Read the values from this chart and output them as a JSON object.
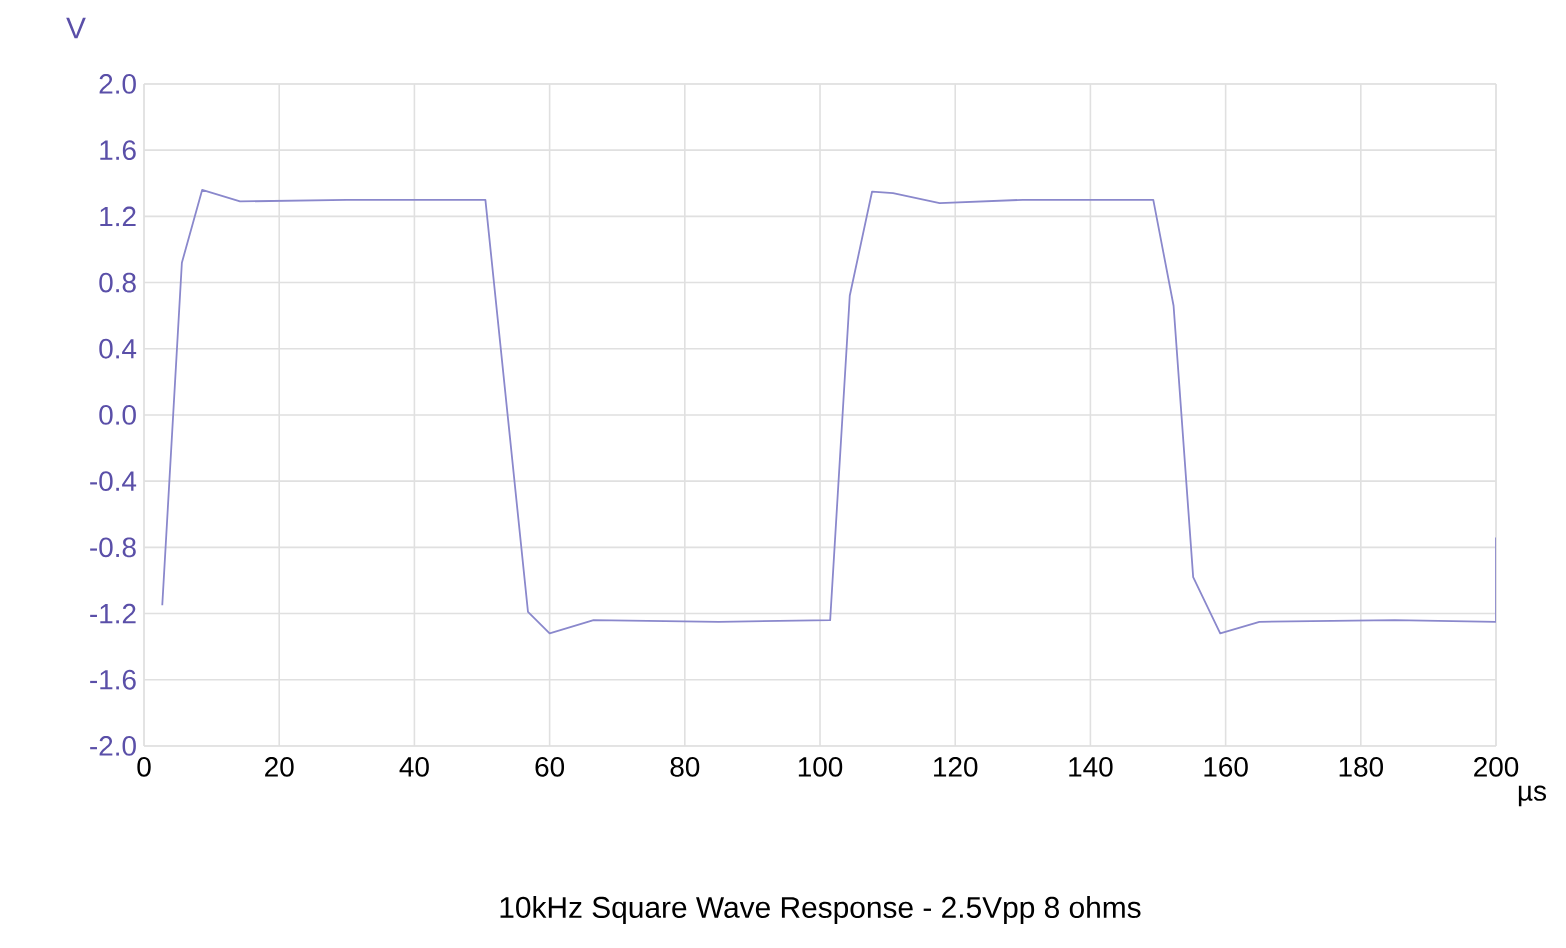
{
  "chart_data": {
    "type": "line",
    "title": "10kHz Square Wave Response - 2.5Vpp 8 ohms",
    "xlabel": "µs",
    "ylabel": "V",
    "xlim": [
      0,
      200
    ],
    "xticks": [
      0,
      20,
      40,
      60,
      80,
      100,
      120,
      140,
      160,
      180,
      200
    ],
    "ylim": [
      -2.0,
      2.0
    ],
    "yticks": [
      {
        "value": 2.0,
        "label": "2.0"
      },
      {
        "value": 1.6,
        "label": "1.6"
      },
      {
        "value": 1.2,
        "label": "1.2"
      },
      {
        "value": 0.8,
        "label": "0.8"
      },
      {
        "value": 0.4,
        "label": "0.4"
      },
      {
        "value": 0.0,
        "label": "0.0"
      },
      {
        "value": -0.4,
        "label": "-0.4"
      },
      {
        "value": -0.8,
        "label": "-0.8"
      },
      {
        "value": -1.2,
        "label": "-1.2"
      },
      {
        "value": -1.6,
        "label": "-1.6"
      },
      {
        "value": -2.0,
        "label": "-2.0"
      }
    ],
    "grid": true,
    "marker": "none",
    "line_style": "solid",
    "series": [
      {
        "color": "#8a88cc",
        "x": [
          2.7,
          5.6,
          8.6,
          14.2,
          30,
          50.5,
          56.8,
          60,
          66.5,
          85,
          101.5,
          104.4,
          107.7,
          110.8,
          117.7,
          130,
          149.3,
          152.3,
          155.2,
          159.2,
          165,
          185,
          200,
          200
        ],
        "values": [
          -1.15,
          0.92,
          1.36,
          1.29,
          1.3,
          1.3,
          -1.19,
          -1.32,
          -1.24,
          -1.25,
          -1.24,
          0.72,
          1.35,
          1.34,
          1.28,
          1.3,
          1.3,
          0.66,
          -0.98,
          -1.32,
          -1.25,
          -1.24,
          -1.25,
          -0.74
        ]
      }
    ]
  }
}
